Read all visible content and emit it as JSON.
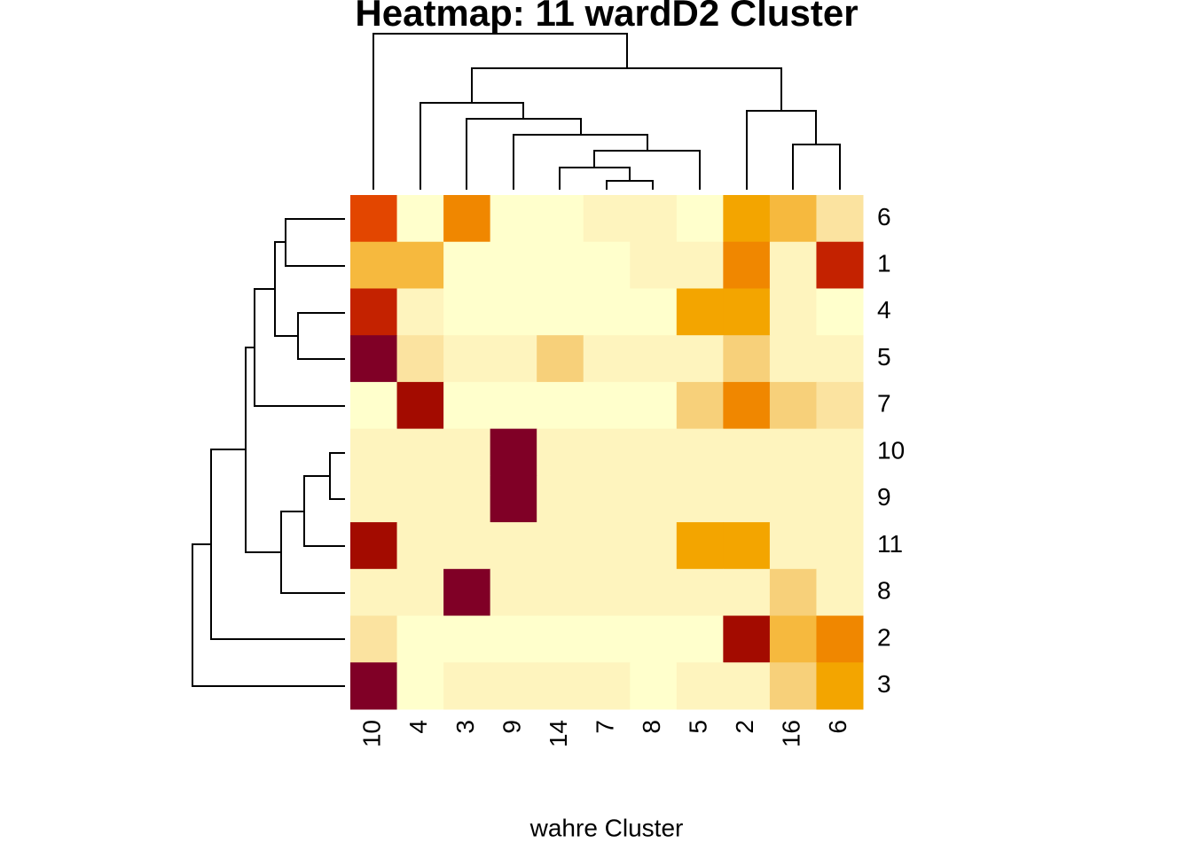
{
  "chart_data": {
    "type": "heatmap",
    "title": "Heatmap: 11 wardD2 Cluster",
    "xlabel": "wahre Cluster",
    "categories": [
      "10",
      "4",
      "3",
      "9",
      "14",
      "7",
      "8",
      "5",
      "2",
      "16",
      "6"
    ],
    "rows": [
      "6",
      "1",
      "4",
      "5",
      "7",
      "10",
      "9",
      "11",
      "8",
      "2",
      "3"
    ],
    "colors": [
      "#FFFFCC",
      "#FEF4BE",
      "#FBE3A0",
      "#F7D07A",
      "#F6B93E",
      "#F3A500",
      "#F08700",
      "#E34600",
      "#C42200",
      "#A30B00",
      "#800026"
    ],
    "values": [
      [
        7,
        0,
        6,
        0,
        0,
        1,
        1,
        0,
        5,
        4,
        2
      ],
      [
        4,
        4,
        0,
        0,
        0,
        0,
        1,
        1,
        6,
        1,
        8
      ],
      [
        8,
        1,
        0,
        0,
        0,
        0,
        0,
        5,
        5,
        1,
        0
      ],
      [
        10,
        2,
        1,
        1,
        3,
        1,
        1,
        1,
        3,
        1,
        1
      ],
      [
        0,
        9,
        0,
        0,
        0,
        0,
        0,
        3,
        6,
        3,
        2
      ],
      [
        1,
        1,
        1,
        10,
        1,
        1,
        1,
        1,
        1,
        1,
        1
      ],
      [
        1,
        1,
        1,
        10,
        1,
        1,
        1,
        1,
        1,
        1,
        1
      ],
      [
        9,
        1,
        1,
        1,
        1,
        1,
        1,
        5,
        5,
        1,
        1
      ],
      [
        1,
        1,
        10,
        1,
        1,
        1,
        1,
        1,
        1,
        3,
        1
      ],
      [
        2,
        0,
        0,
        0,
        0,
        0,
        0,
        0,
        9,
        4,
        6
      ],
      [
        10,
        0,
        1,
        1,
        1,
        1,
        0,
        1,
        1,
        3,
        5
      ]
    ]
  }
}
